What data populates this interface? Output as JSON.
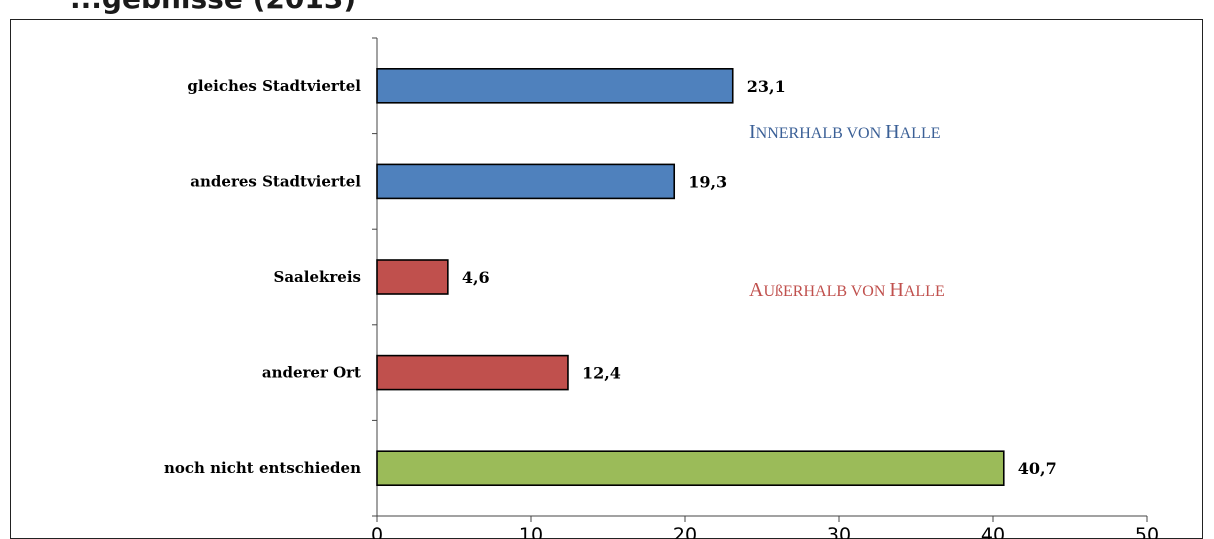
{
  "page": {
    "title": "...gebnisse (2013)"
  },
  "chart_data": {
    "type": "bar",
    "orientation": "horizontal",
    "categories": [
      "gleiches Stadtviertel",
      "anderes Stadtviertel",
      "Saalekreis",
      "anderer Ort",
      "noch nicht entschieden"
    ],
    "values": [
      23.1,
      19.3,
      4.6,
      12.4,
      40.7
    ],
    "value_labels": [
      "23,1",
      "19,3",
      "4,6",
      "12,4",
      "40,7"
    ],
    "bar_colors": [
      "#4f81bd",
      "#4f81bd",
      "#c0504d",
      "#c0504d",
      "#9bbb59"
    ],
    "xlim": [
      0,
      50
    ],
    "xticks": [
      0,
      10,
      20,
      30,
      40,
      50
    ],
    "xlabel": "",
    "ylabel": "",
    "grid": false,
    "groups": [
      {
        "label_initial": "I",
        "label_rest": "NNERHALB VON ",
        "label_initial2": "H",
        "label_rest2": "ALLE",
        "color": "#3a5f96",
        "categories": [
          "gleiches Stadtviertel",
          "anderes Stadtviertel"
        ]
      },
      {
        "label_initial": "A",
        "label_rest": "UßERHALB VON ",
        "label_initial2": "H",
        "label_rest2": "ALLE",
        "color": "#c0504d",
        "categories": [
          "Saalekreis",
          "anderer Ort"
        ]
      }
    ]
  }
}
